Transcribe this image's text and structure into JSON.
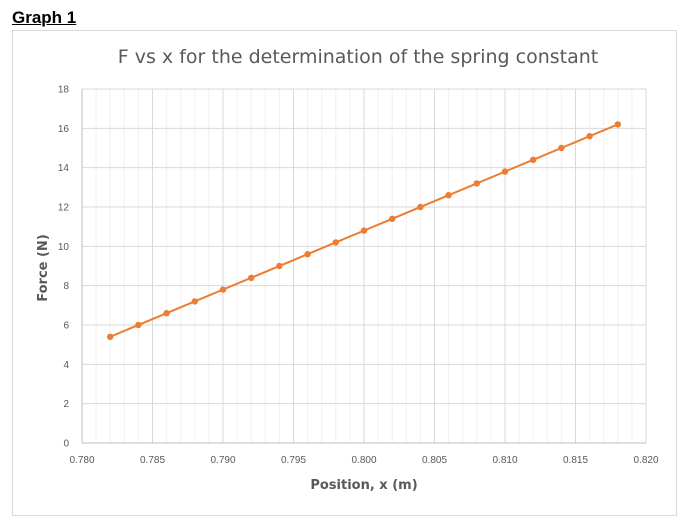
{
  "heading": "Graph 1",
  "chart_data": {
    "type": "scatter",
    "title": "F vs x for the determination of the spring constant",
    "xlabel": "Position, x (m)",
    "ylabel": "Force (N)",
    "xlim": [
      0.78,
      0.82
    ],
    "ylim": [
      0,
      18
    ],
    "xticks": [
      "0.780",
      "0.785",
      "0.790",
      "0.795",
      "0.800",
      "0.805",
      "0.810",
      "0.815",
      "0.820"
    ],
    "yticks": [
      "0",
      "2",
      "4",
      "6",
      "8",
      "10",
      "12",
      "14",
      "16",
      "18"
    ],
    "grid": true,
    "trendline": "linear",
    "series": [
      {
        "color": "#ed7d31",
        "x": [
          0.782,
          0.784,
          0.786,
          0.788,
          0.79,
          0.792,
          0.794,
          0.796,
          0.798,
          0.8,
          0.802,
          0.804,
          0.806,
          0.808,
          0.81,
          0.812,
          0.814,
          0.816,
          0.818
        ],
        "y": [
          5.4,
          6.0,
          6.6,
          7.2,
          7.8,
          8.4,
          9.0,
          9.6,
          10.2,
          10.8,
          11.4,
          12.0,
          12.6,
          13.2,
          13.8,
          14.4,
          15.0,
          15.6,
          16.2
        ]
      }
    ]
  }
}
